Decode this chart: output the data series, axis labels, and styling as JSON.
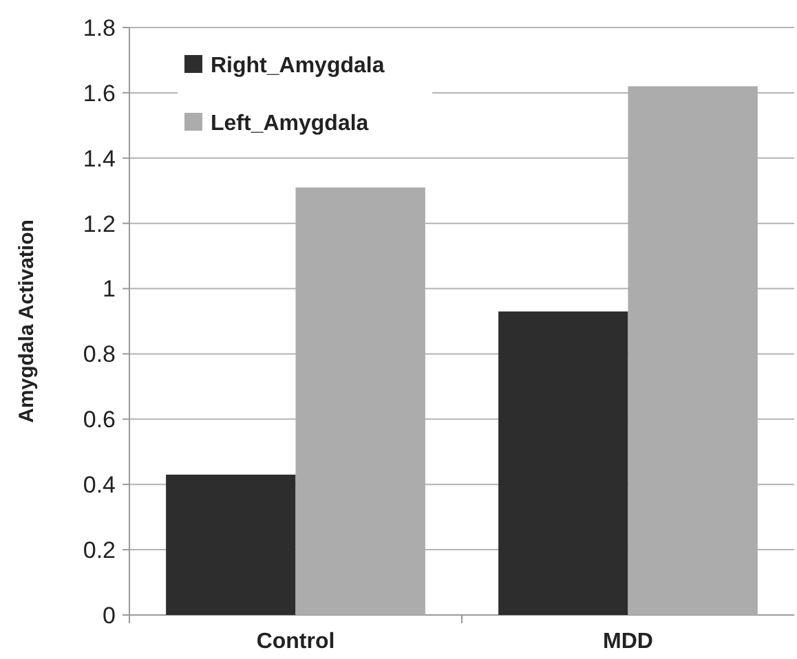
{
  "chart_data": {
    "type": "bar",
    "ylabel": "Amygdala Activation",
    "categories": [
      "Control",
      "MDD"
    ],
    "series": [
      {
        "name": "Right_Amygdala",
        "color": "#2d2d2d",
        "values": [
          0.43,
          0.93
        ]
      },
      {
        "name": "Left_Amygdala",
        "color": "#acacac",
        "values": [
          1.31,
          1.62
        ]
      }
    ],
    "ylim": [
      0,
      1.8
    ],
    "yticks": [
      0,
      0.2,
      0.4,
      0.6,
      0.8,
      1,
      1.2,
      1.4,
      1.6,
      1.8
    ],
    "grid": "y",
    "legend": "top left"
  }
}
